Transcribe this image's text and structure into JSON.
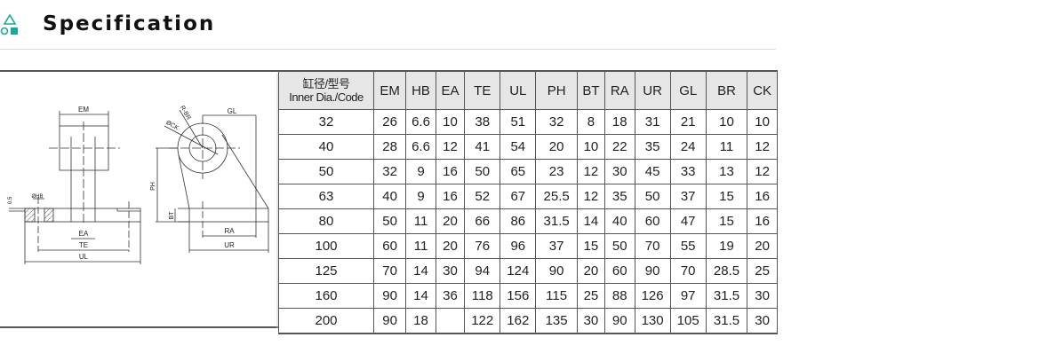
{
  "header": {
    "title": "Specification",
    "icon": "shapes-icon",
    "accent": "#1aa89a"
  },
  "table": {
    "code_header_cn": "缸径/型号",
    "code_header_en": "Inner Dia./Code",
    "columns": [
      "EM",
      "HB",
      "EA",
      "TE",
      "UL",
      "PH",
      "BT",
      "RA",
      "UR",
      "GL",
      "BR",
      "CK"
    ],
    "rows": [
      [
        "32",
        "26",
        "6.6",
        "10",
        "38",
        "51",
        "32",
        "8",
        "18",
        "31",
        "21",
        "10",
        "10"
      ],
      [
        "40",
        "28",
        "6.6",
        "12",
        "41",
        "54",
        "20",
        "10",
        "22",
        "35",
        "24",
        "11",
        "12"
      ],
      [
        "50",
        "32",
        "9",
        "16",
        "50",
        "65",
        "23",
        "12",
        "30",
        "45",
        "33",
        "13",
        "12"
      ],
      [
        "63",
        "40",
        "9",
        "16",
        "52",
        "67",
        "25.5",
        "12",
        "35",
        "50",
        "37",
        "15",
        "16"
      ],
      [
        "80",
        "50",
        "11",
        "20",
        "66",
        "86",
        "31.5",
        "14",
        "40",
        "60",
        "47",
        "15",
        "16"
      ],
      [
        "100",
        "60",
        "11",
        "20",
        "76",
        "96",
        "37",
        "15",
        "50",
        "70",
        "55",
        "19",
        "20"
      ],
      [
        "125",
        "70",
        "14",
        "30",
        "94",
        "124",
        "90",
        "20",
        "60",
        "90",
        "70",
        "28.5",
        "25"
      ],
      [
        "160",
        "90",
        "14",
        "36",
        "118",
        "156",
        "115",
        "25",
        "88",
        "126",
        "97",
        "31.5",
        "30"
      ],
      [
        "200",
        "90",
        "18",
        "",
        "122",
        "162",
        "135",
        "30",
        "90",
        "130",
        "105",
        "31.5",
        "30"
      ]
    ]
  },
  "drawing": {
    "labels": {
      "em": "EM",
      "ea": "EA",
      "te": "TE",
      "ul": "UL",
      "hb": "ØHB",
      "gap": "0.5",
      "gl": "GL",
      "br": "R-BR",
      "ck": "ØCK",
      "ph": "PH",
      "bt": "BT",
      "ra": "RA",
      "ur": "UR"
    }
  }
}
